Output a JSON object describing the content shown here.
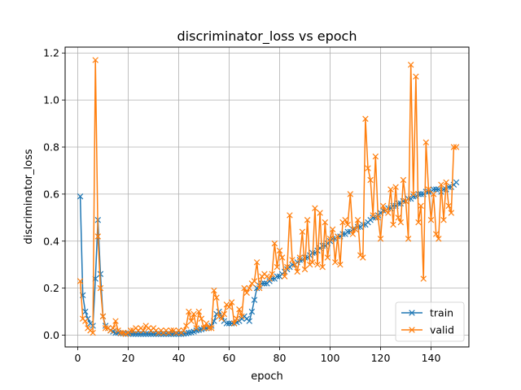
{
  "chart_data": {
    "type": "line",
    "title": "discriminator_loss vs epoch",
    "xlabel": "epoch",
    "ylabel": "discriminator_loss",
    "xlim": [
      -5,
      155
    ],
    "ylim": [
      -0.05,
      1.225
    ],
    "xticks": [
      0,
      20,
      40,
      60,
      80,
      100,
      120,
      140
    ],
    "yticks": [
      0.0,
      0.2,
      0.4,
      0.6,
      0.8,
      1.0,
      1.2
    ],
    "ytick_labels": [
      "0.0",
      "0.2",
      "0.4",
      "0.6",
      "0.8",
      "1.0",
      "1.2"
    ],
    "grid": true,
    "legend_position": "lower-right",
    "x": [
      1,
      2,
      3,
      4,
      5,
      6,
      7,
      8,
      9,
      10,
      11,
      12,
      13,
      14,
      15,
      16,
      17,
      18,
      19,
      20,
      21,
      22,
      23,
      24,
      25,
      26,
      27,
      28,
      29,
      30,
      31,
      32,
      33,
      34,
      35,
      36,
      37,
      38,
      39,
      40,
      41,
      42,
      43,
      44,
      45,
      46,
      47,
      48,
      49,
      50,
      51,
      52,
      53,
      54,
      55,
      56,
      57,
      58,
      59,
      60,
      61,
      62,
      63,
      64,
      65,
      66,
      67,
      68,
      69,
      70,
      71,
      72,
      73,
      74,
      75,
      76,
      77,
      78,
      79,
      80,
      81,
      82,
      83,
      84,
      85,
      86,
      87,
      88,
      89,
      90,
      91,
      92,
      93,
      94,
      95,
      96,
      97,
      98,
      99,
      100,
      101,
      102,
      103,
      104,
      105,
      106,
      107,
      108,
      109,
      110,
      111,
      112,
      113,
      114,
      115,
      116,
      117,
      118,
      119,
      120,
      121,
      122,
      123,
      124,
      125,
      126,
      127,
      128,
      129,
      130,
      131,
      132,
      133,
      134,
      135,
      136,
      137,
      138,
      139,
      140,
      141,
      142,
      143,
      144,
      145,
      146,
      147,
      148,
      149,
      150
    ],
    "series": [
      {
        "name": "train",
        "color": "#1f77b4",
        "marker": "x",
        "values": [
          0.59,
          0.17,
          0.1,
          0.07,
          0.05,
          0.04,
          0.24,
          0.49,
          0.26,
          0.08,
          0.04,
          0.03,
          0.02,
          0.015,
          0.01,
          0.01,
          0.008,
          0.007,
          0.007,
          0.006,
          0.006,
          0.005,
          0.005,
          0.005,
          0.005,
          0.005,
          0.005,
          0.005,
          0.005,
          0.005,
          0.005,
          0.005,
          0.005,
          0.005,
          0.005,
          0.005,
          0.005,
          0.005,
          0.005,
          0.005,
          0.005,
          0.006,
          0.008,
          0.01,
          0.012,
          0.015,
          0.02,
          0.022,
          0.025,
          0.028,
          0.03,
          0.035,
          0.04,
          0.06,
          0.09,
          0.1,
          0.08,
          0.06,
          0.05,
          0.05,
          0.05,
          0.05,
          0.055,
          0.06,
          0.07,
          0.08,
          0.07,
          0.06,
          0.1,
          0.15,
          0.2,
          0.21,
          0.22,
          0.22,
          0.22,
          0.23,
          0.24,
          0.24,
          0.25,
          0.25,
          0.26,
          0.27,
          0.28,
          0.29,
          0.3,
          0.3,
          0.31,
          0.32,
          0.32,
          0.33,
          0.33,
          0.34,
          0.35,
          0.35,
          0.36,
          0.37,
          0.38,
          0.38,
          0.39,
          0.4,
          0.41,
          0.41,
          0.42,
          0.42,
          0.43,
          0.43,
          0.44,
          0.44,
          0.45,
          0.45,
          0.46,
          0.46,
          0.47,
          0.47,
          0.48,
          0.49,
          0.5,
          0.5,
          0.51,
          0.52,
          0.53,
          0.53,
          0.54,
          0.54,
          0.55,
          0.55,
          0.56,
          0.56,
          0.57,
          0.57,
          0.58,
          0.58,
          0.59,
          0.59,
          0.6,
          0.6,
          0.6,
          0.61,
          0.61,
          0.61,
          0.62,
          0.62,
          0.62,
          0.61,
          0.62,
          0.62,
          0.63,
          0.63,
          0.64,
          0.65
        ]
      },
      {
        "name": "valid",
        "color": "#ff7f0e",
        "marker": "x",
        "values": [
          0.23,
          0.07,
          0.06,
          0.03,
          0.02,
          0.01,
          1.17,
          0.42,
          0.2,
          0.08,
          0.03,
          0.03,
          0.02,
          0.03,
          0.06,
          0.02,
          0.01,
          0.01,
          0.005,
          0.01,
          0.02,
          0.02,
          0.03,
          0.02,
          0.03,
          0.02,
          0.04,
          0.03,
          0.02,
          0.03,
          0.02,
          0.01,
          0.02,
          0.01,
          0.02,
          0.01,
          0.02,
          0.02,
          0.01,
          0.02,
          0.01,
          0.02,
          0.04,
          0.1,
          0.06,
          0.09,
          0.03,
          0.1,
          0.07,
          0.03,
          0.05,
          0.03,
          0.03,
          0.19,
          0.16,
          0.08,
          0.07,
          0.09,
          0.13,
          0.12,
          0.14,
          0.05,
          0.07,
          0.11,
          0.08,
          0.2,
          0.18,
          0.2,
          0.22,
          0.23,
          0.31,
          0.2,
          0.25,
          0.26,
          0.25,
          0.24,
          0.26,
          0.39,
          0.29,
          0.36,
          0.33,
          0.25,
          0.29,
          0.51,
          0.32,
          0.3,
          0.27,
          0.33,
          0.44,
          0.28,
          0.49,
          0.3,
          0.31,
          0.54,
          0.3,
          0.52,
          0.29,
          0.48,
          0.33,
          0.41,
          0.45,
          0.31,
          0.42,
          0.3,
          0.48,
          0.49,
          0.47,
          0.6,
          0.43,
          0.45,
          0.49,
          0.34,
          0.33,
          0.92,
          0.71,
          0.66,
          0.51,
          0.76,
          0.5,
          0.41,
          0.55,
          0.53,
          0.52,
          0.62,
          0.47,
          0.63,
          0.5,
          0.48,
          0.66,
          0.57,
          0.41,
          1.15,
          0.6,
          1.1,
          0.48,
          0.55,
          0.24,
          0.82,
          0.62,
          0.49,
          0.6,
          0.43,
          0.41,
          0.64,
          0.49,
          0.65,
          0.55,
          0.52,
          0.8,
          0.8
        ]
      }
    ]
  }
}
